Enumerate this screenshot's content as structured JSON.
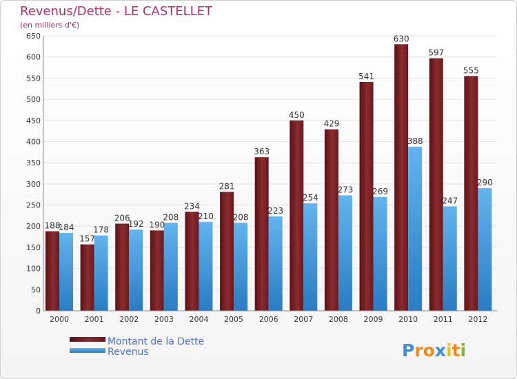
{
  "title": "Revenus/Dette - LE CASTELLET",
  "subtitle": "(en milliers d'€)",
  "logo": "Proxiti",
  "colors": {
    "dette": "#6e1a1f",
    "dette_light": "#9a3a3e",
    "revenus": "#2f86cf",
    "revenus_light": "#62b4ee",
    "title": "#b0306a",
    "legend_text": "#4a6fd8"
  },
  "chart_data": {
    "type": "bar",
    "title": "Revenus/Dette - LE CASTELLET",
    "subtitle": "(en milliers d'€)",
    "categories": [
      "2000",
      "2001",
      "2002",
      "2003",
      "2004",
      "2005",
      "2006",
      "2007",
      "2008",
      "2009",
      "2010",
      "2011",
      "2012"
    ],
    "series": [
      {
        "name": "Montant de la Dette",
        "values": [
          188,
          157,
          206,
          190,
          234,
          281,
          363,
          450,
          429,
          541,
          630,
          597,
          555
        ]
      },
      {
        "name": "Revenus",
        "values": [
          184,
          178,
          192,
          208,
          210,
          208,
          223,
          254,
          273,
          269,
          388,
          247,
          290
        ]
      }
    ],
    "ylim": [
      0,
      650
    ],
    "yticks": [
      0,
      50,
      100,
      150,
      200,
      250,
      300,
      350,
      400,
      450,
      500,
      550,
      600,
      650
    ],
    "grid": true,
    "legend": "bottom-left"
  }
}
